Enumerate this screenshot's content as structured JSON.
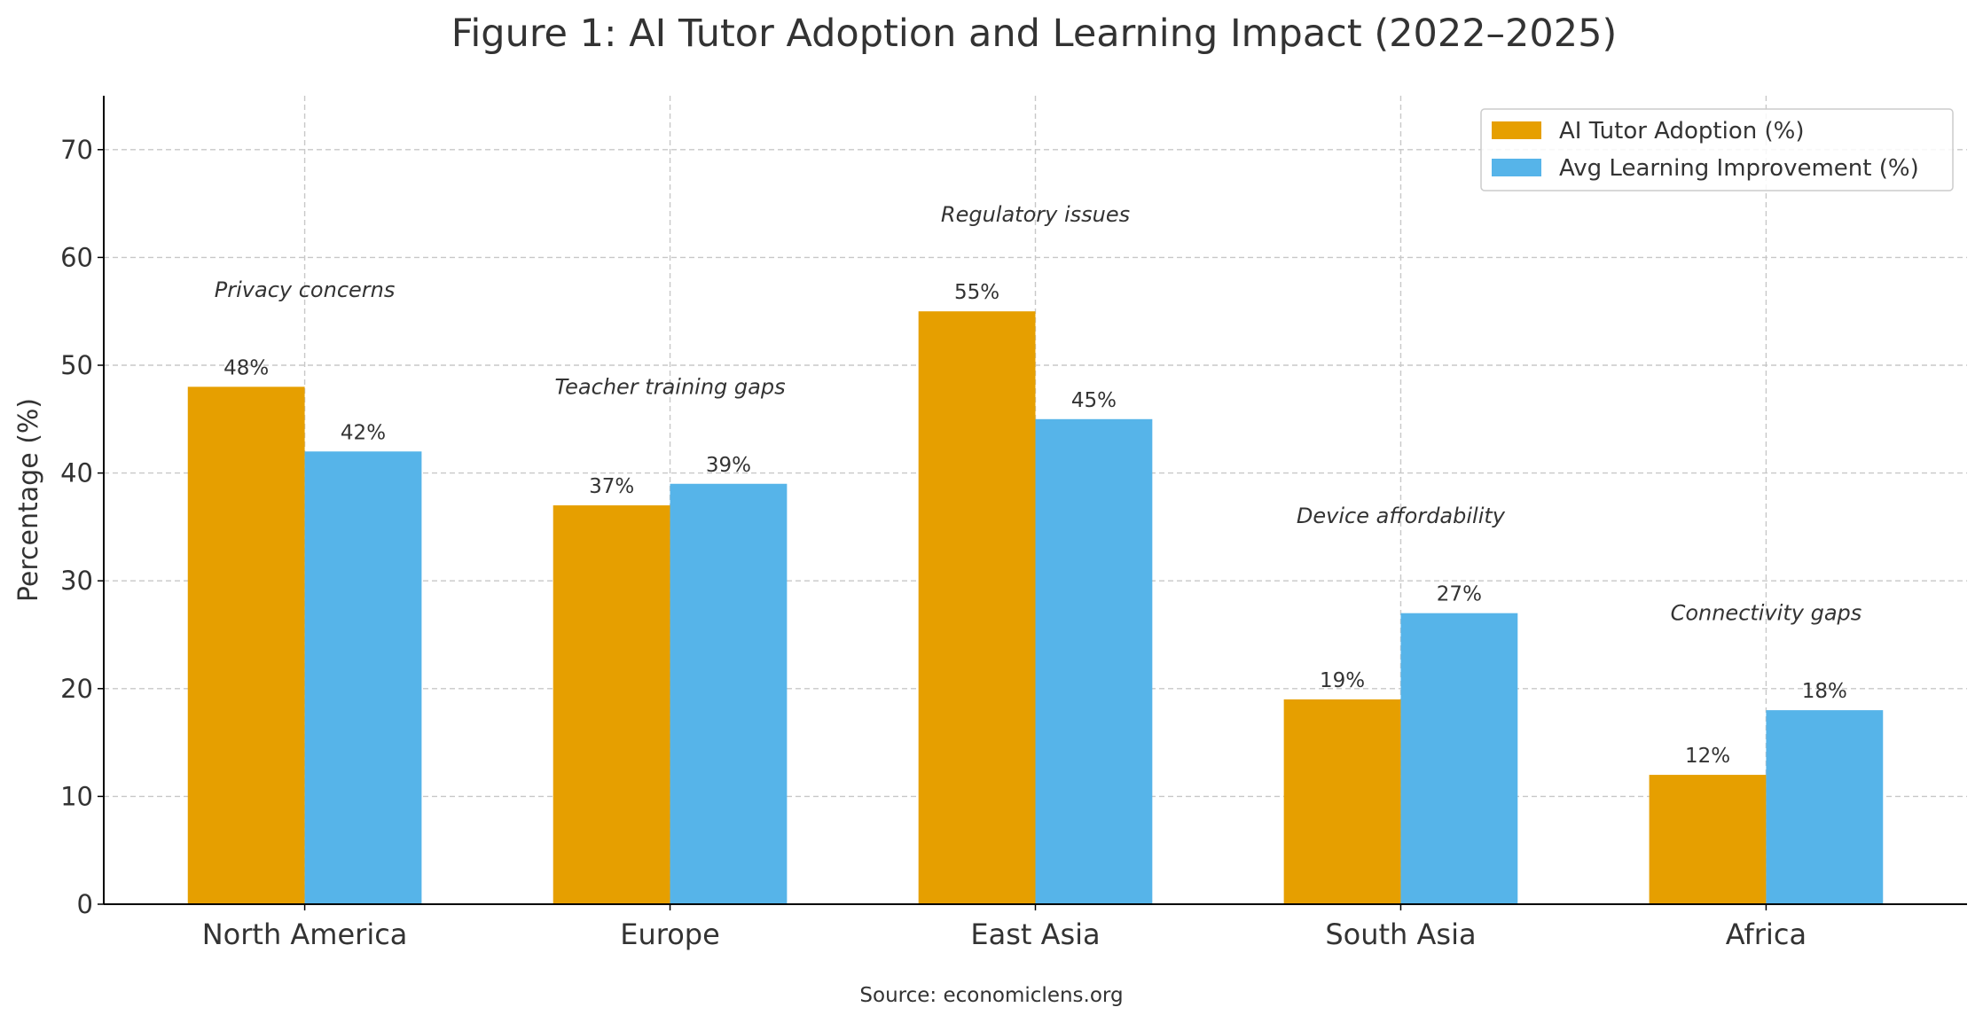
{
  "chart_data": {
    "type": "bar",
    "title": "Figure 1: AI Tutor Adoption and Learning Impact (2022–2025)",
    "ylabel": "Percentage (%)",
    "source": "Source: economiclens.org",
    "categories": [
      "North America",
      "Europe",
      "East Asia",
      "South Asia",
      "Africa"
    ],
    "series": [
      {
        "name": "AI Tutor Adoption (%)",
        "color": "#E69F00",
        "values": [
          48,
          37,
          55,
          19,
          12
        ],
        "value_labels": [
          "48%",
          "37%",
          "55%",
          "19%",
          "12%"
        ]
      },
      {
        "name": "Avg Learning Improvement (%)",
        "color": "#56B4E9",
        "values": [
          42,
          39,
          45,
          27,
          18
        ],
        "value_labels": [
          "42%",
          "39%",
          "45%",
          "27%",
          "18%"
        ]
      }
    ],
    "annotations": [
      "Privacy concerns",
      "Teacher training gaps",
      "Regulatory issues",
      "Device affordability",
      "Connectivity gaps"
    ],
    "ylim": [
      0,
      75
    ],
    "yticks": [
      0,
      10,
      20,
      30,
      40,
      50,
      60,
      70
    ],
    "grid": true,
    "legend": "upper right"
  }
}
